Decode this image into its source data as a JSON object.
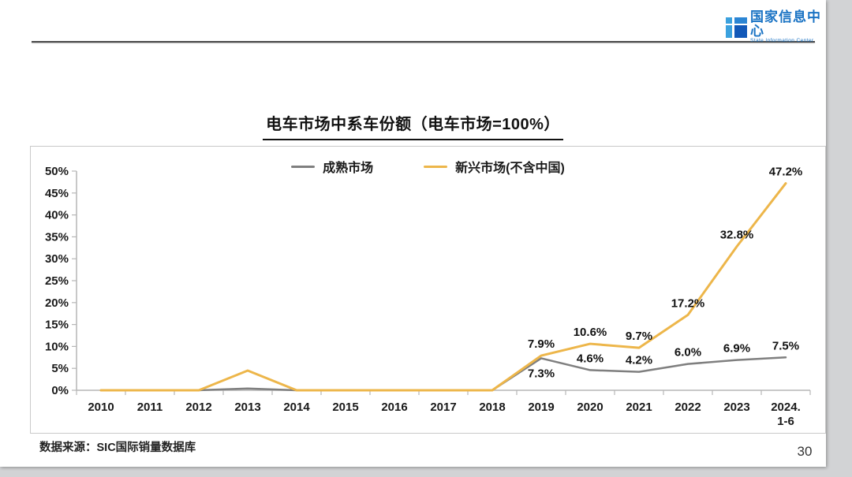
{
  "header": {
    "logo": {
      "org_name_zh": "国家信息中心",
      "org_name_en": "State Information Center",
      "brand_blue_light": "#3ba1de",
      "brand_blue_dark": "#1258b8"
    }
  },
  "title": "电车市场中系车份额（电车市场=100%）",
  "footer": {
    "source": "数据来源：SIC国际销量数据库",
    "page_number": "30"
  },
  "chart_data": {
    "type": "line",
    "title": "电车市场中系车份额（电车市场=100%）",
    "categories": [
      "2010",
      "2011",
      "2012",
      "2013",
      "2014",
      "2015",
      "2016",
      "2017",
      "2018",
      "2019",
      "2020",
      "2021",
      "2022",
      "2023",
      "2024.\n1-6"
    ],
    "ylim": [
      0,
      50
    ],
    "y_tick_step": 5,
    "ylabel": "",
    "xlabel": "",
    "grid": false,
    "legend_position": "top-center",
    "axis_color": "#b6b6b6",
    "series": [
      {
        "name": "成熟市场",
        "color": "#7f7f7f",
        "values": [
          0,
          0,
          0,
          0.4,
          0,
          0,
          0,
          0,
          0,
          7.3,
          4.6,
          4.2,
          6.0,
          6.9,
          7.5
        ],
        "point_labels": [
          "",
          "",
          "",
          "",
          "",
          "",
          "",
          "",
          "",
          "7.3%",
          "4.6%",
          "4.2%",
          "6.0%",
          "6.9%",
          "7.5%"
        ],
        "label_side": [
          "",
          "",
          "",
          "",
          "",
          "",
          "",
          "",
          "",
          "below",
          "above",
          "above",
          "above",
          "above",
          "above"
        ]
      },
      {
        "name": "新兴市场(不含中国)",
        "color": "#edb64a",
        "values": [
          0,
          0,
          0,
          4.5,
          0,
          0,
          0,
          0,
          0,
          7.9,
          10.6,
          9.7,
          17.2,
          32.8,
          47.2
        ],
        "point_labels": [
          "",
          "",
          "",
          "",
          "",
          "",
          "",
          "",
          "",
          "7.9%",
          "10.6%",
          "9.7%",
          "17.2%",
          "32.8%",
          "47.2%"
        ],
        "label_side": [
          "",
          "",
          "",
          "",
          "",
          "",
          "",
          "",
          "",
          "above",
          "above",
          "above",
          "above",
          "above",
          "above"
        ]
      }
    ]
  }
}
